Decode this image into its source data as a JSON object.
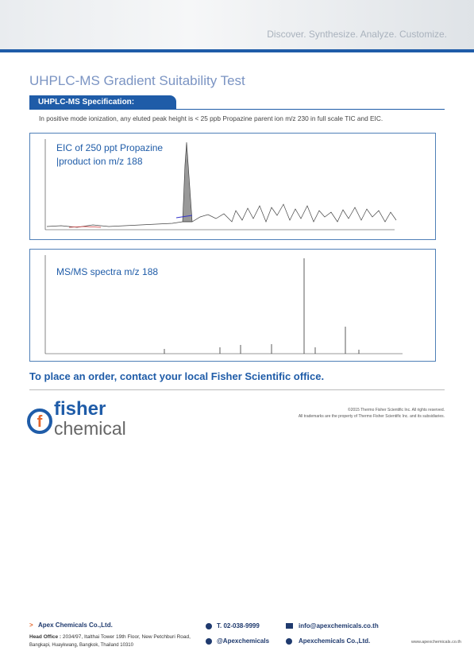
{
  "header": {
    "tagline": "Discover. Synthesize. Analyze. Customize."
  },
  "title": "UHPLC-MS Gradient Suitability Test",
  "section": {
    "heading": "UHPLC-MS Specification:",
    "text": "In positive mode ionization, any eluted peak height is < 25 ppb Propazine parent ion m/z 230 in full scale TIC and EIC."
  },
  "figures": [
    {
      "caption": [
        "EIC of 250 ppt Propazine",
        "|product ion m/z 188"
      ]
    },
    {
      "caption": [
        "MS/MS spectra m/z 188"
      ]
    }
  ],
  "order_text": "To place an order, contact your local Fisher Scientific office.",
  "copyright": [
    "©2015 Thermo Fisher Scientific Inc. All rights reserved.",
    "All trademarks are the property of Thermo Fisher Scientific Inc. and its subsidiaries."
  ],
  "logo": {
    "line1": "fisher",
    "line2": "chemical"
  },
  "footer": {
    "company": "Apex Chemicals Co.,Ltd.",
    "head_office_label": "Head Office :",
    "address": [
      "2034/97, Italthai Tower 19th Floor, New Petchburi Road,",
      "Bangkapi, Huaykwang, Bangkok, Thailand 10310"
    ],
    "phone": "T. 02-038-9999",
    "line_id": "@Apexchemicals",
    "email": "info@apexchemicals.co.th",
    "facebook": "Apexchemicals Co.,Ltd.",
    "website": "www.apexchemicals.co.th"
  }
}
